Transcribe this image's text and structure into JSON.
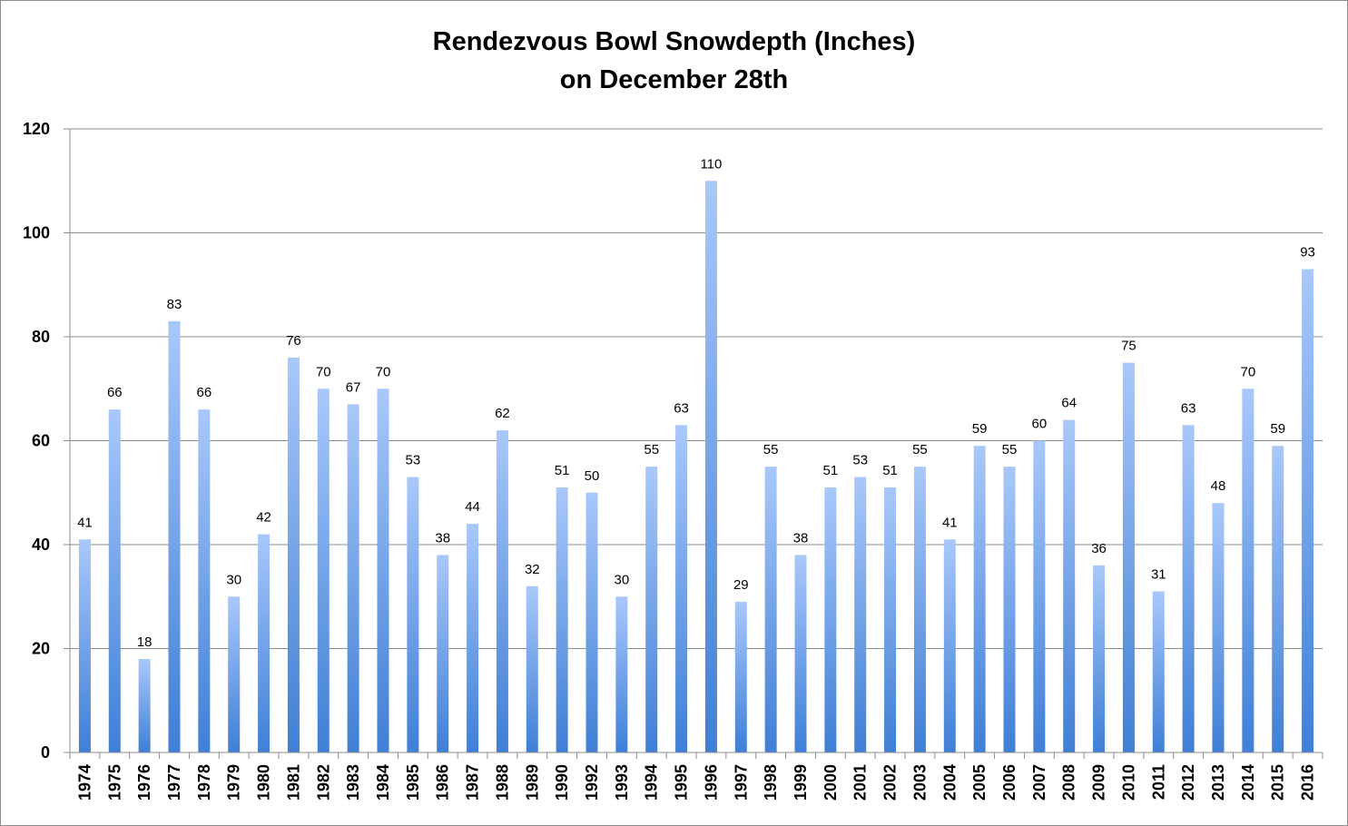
{
  "chart_data": {
    "type": "bar",
    "title": "Rendezvous Bowl Snowdepth (Inches)",
    "subtitle": "on December 28th",
    "xlabel": "",
    "ylabel": "",
    "ylim": [
      0,
      120
    ],
    "yticks": [
      0,
      20,
      40,
      60,
      80,
      100,
      120
    ],
    "grid": true,
    "legend": "none",
    "bar_color_top": "#a9c8fa",
    "bar_color_bottom": "#3f7fd6",
    "categories": [
      "1974",
      "1975",
      "1976",
      "1977",
      "1978",
      "1979",
      "1980",
      "1981",
      "1982",
      "1983",
      "1984",
      "1985",
      "1986",
      "1987",
      "1988",
      "1989",
      "1990",
      "1992",
      "1993",
      "1994",
      "1995",
      "1996",
      "1997",
      "1998",
      "1999",
      "2000",
      "2001",
      "2002",
      "2003",
      "2004",
      "2005",
      "2006",
      "2007",
      "2008",
      "2009",
      "2010",
      "2011",
      "2012",
      "2013",
      "2014",
      "2015",
      "2016"
    ],
    "values": [
      41,
      66,
      18,
      83,
      66,
      30,
      42,
      76,
      70,
      67,
      70,
      53,
      38,
      44,
      62,
      32,
      51,
      50,
      30,
      55,
      63,
      110,
      29,
      55,
      38,
      51,
      53,
      51,
      55,
      41,
      59,
      55,
      60,
      64,
      36,
      75,
      31,
      63,
      48,
      70,
      59,
      93
    ]
  }
}
